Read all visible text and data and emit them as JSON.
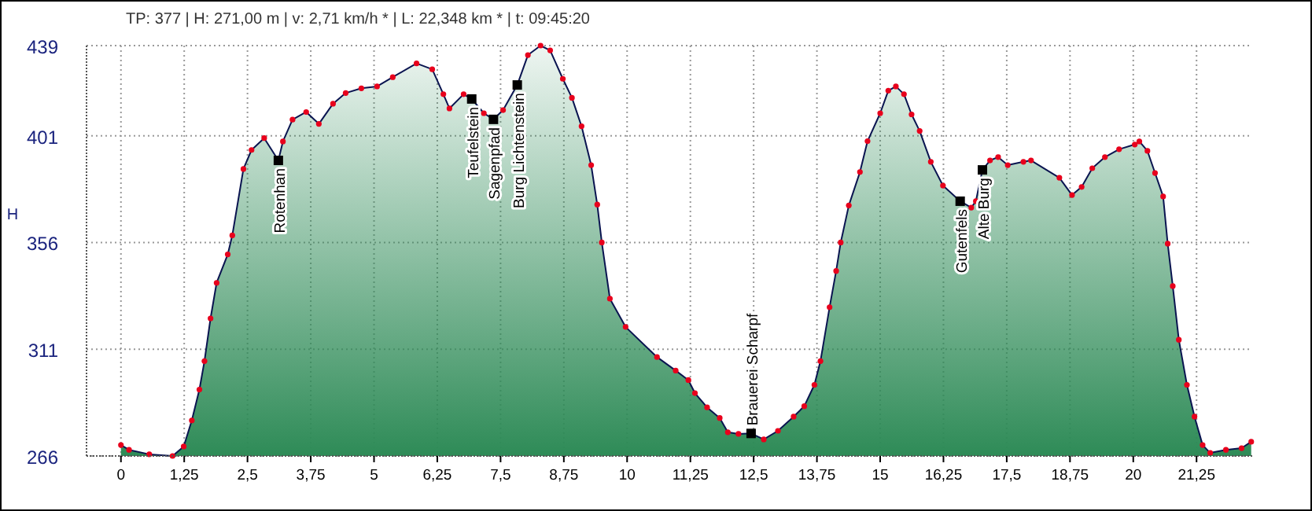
{
  "chart_data": {
    "type": "area",
    "title": "TP: 377 | H: 271,00 m | v: 2,71 km/h * | L: 22,348 km * | t: 09:45:20",
    "ylabel": "H",
    "xlim": [
      -0.68,
      22.35
    ],
    "ylim": [
      266,
      439
    ],
    "yticks": [
      266,
      311,
      356,
      401,
      439
    ],
    "xticks": [
      {
        "value": 0,
        "label": "0"
      },
      {
        "value": 1.25,
        "label": "1,25"
      },
      {
        "value": 2.5,
        "label": "2,5"
      },
      {
        "value": 3.75,
        "label": "3,75"
      },
      {
        "value": 5,
        "label": "5"
      },
      {
        "value": 6.25,
        "label": "6,25"
      },
      {
        "value": 7.5,
        "label": "7,5"
      },
      {
        "value": 8.75,
        "label": "8,75"
      },
      {
        "value": 10,
        "label": "10"
      },
      {
        "value": 11.25,
        "label": "11,25"
      },
      {
        "value": 12.5,
        "label": "12,5"
      },
      {
        "value": 13.75,
        "label": "13,75"
      },
      {
        "value": 15,
        "label": "15"
      },
      {
        "value": 16.25,
        "label": "16,25"
      },
      {
        "value": 17.5,
        "label": "17,5"
      },
      {
        "value": 18.75,
        "label": "18,75"
      },
      {
        "value": 20,
        "label": "20"
      },
      {
        "value": 21.25,
        "label": "21,25"
      }
    ],
    "grid": true,
    "marker": "circle",
    "x": [
      0,
      0.16,
      0.56,
      1.02,
      1.24,
      1.4,
      1.55,
      1.65,
      1.77,
      1.89,
      2.11,
      2.2,
      2.42,
      2.58,
      2.83,
      3.11,
      3.2,
      3.39,
      3.66,
      3.91,
      4.19,
      4.44,
      4.75,
      5.06,
      5.37,
      5.84,
      6.15,
      6.37,
      6.49,
      6.77,
      6.93,
      7.17,
      7.36,
      7.55,
      7.83,
      8.04,
      8.29,
      8.48,
      8.73,
      8.91,
      9.1,
      9.29,
      9.41,
      9.5,
      9.66,
      9.97,
      10.59,
      10.96,
      11.21,
      11.34,
      11.58,
      11.83,
      11.99,
      12.2,
      12.45,
      12.7,
      12.98,
      13.29,
      13.5,
      13.7,
      13.82,
      14.0,
      14.13,
      14.22,
      14.38,
      14.6,
      14.75,
      15.0,
      15.16,
      15.31,
      15.47,
      15.62,
      15.78,
      16.0,
      16.24,
      16.58,
      16.8,
      16.89,
      17.02,
      17.17,
      17.33,
      17.52,
      17.83,
      17.98,
      18.54,
      18.79,
      18.98,
      19.19,
      19.44,
      19.72,
      20.03,
      20.12,
      20.28,
      20.43,
      20.59,
      20.68,
      20.78,
      20.9,
      21.06,
      21.21,
      21.37,
      21.52,
      21.83,
      22.14,
      22.33
    ],
    "series": [
      {
        "color": "#2e8b57",
        "values": [
          270.6,
          268.6,
          266.7,
          266,
          270,
          281,
          294,
          306,
          324,
          339,
          351,
          359,
          387,
          395,
          400,
          390.6,
          398.6,
          407.8,
          411,
          406,
          414.5,
          419,
          421,
          421.8,
          425.7,
          431.5,
          429,
          418.5,
          412.5,
          418.5,
          416.5,
          410.5,
          407.9,
          411.8,
          422.4,
          435,
          439,
          437,
          425,
          417,
          405,
          388.6,
          372,
          356,
          332.3,
          320.4,
          307.7,
          302,
          298,
          292.5,
          286.5,
          282,
          276,
          275.3,
          275.5,
          273,
          276.6,
          282.6,
          287,
          296,
          306,
          328.7,
          344,
          356,
          371.6,
          385.7,
          398.7,
          410.5,
          420,
          421.8,
          418.5,
          410,
          403,
          390,
          380,
          373.4,
          370.7,
          373.4,
          386.6,
          390.6,
          392,
          388.6,
          390,
          390.6,
          383.3,
          376,
          379.4,
          387.3,
          392,
          395.3,
          397.3,
          398.6,
          394.6,
          385.3,
          375.4,
          355.5,
          337.6,
          315,
          296,
          282.6,
          270.6,
          267.3,
          268.6,
          269.3,
          272
        ]
      }
    ],
    "annotations": [
      {
        "text": "Rotenhan",
        "x": 3.11,
        "y": 390.6
      },
      {
        "text": "Teufelstein",
        "x": 6.93,
        "y": 416.5
      },
      {
        "text": "Sagenpfad",
        "x": 7.36,
        "y": 407.9
      },
      {
        "text": "Burg Lichtenstein",
        "x": 7.83,
        "y": 422.4
      },
      {
        "text": "Brauerei Scharpf",
        "x": 12.45,
        "y": 275.5
      },
      {
        "text": "Gutenfels",
        "x": 16.58,
        "y": 373.4
      },
      {
        "text": "Alte Burg",
        "x": 17.02,
        "y": 386.6
      }
    ]
  }
}
